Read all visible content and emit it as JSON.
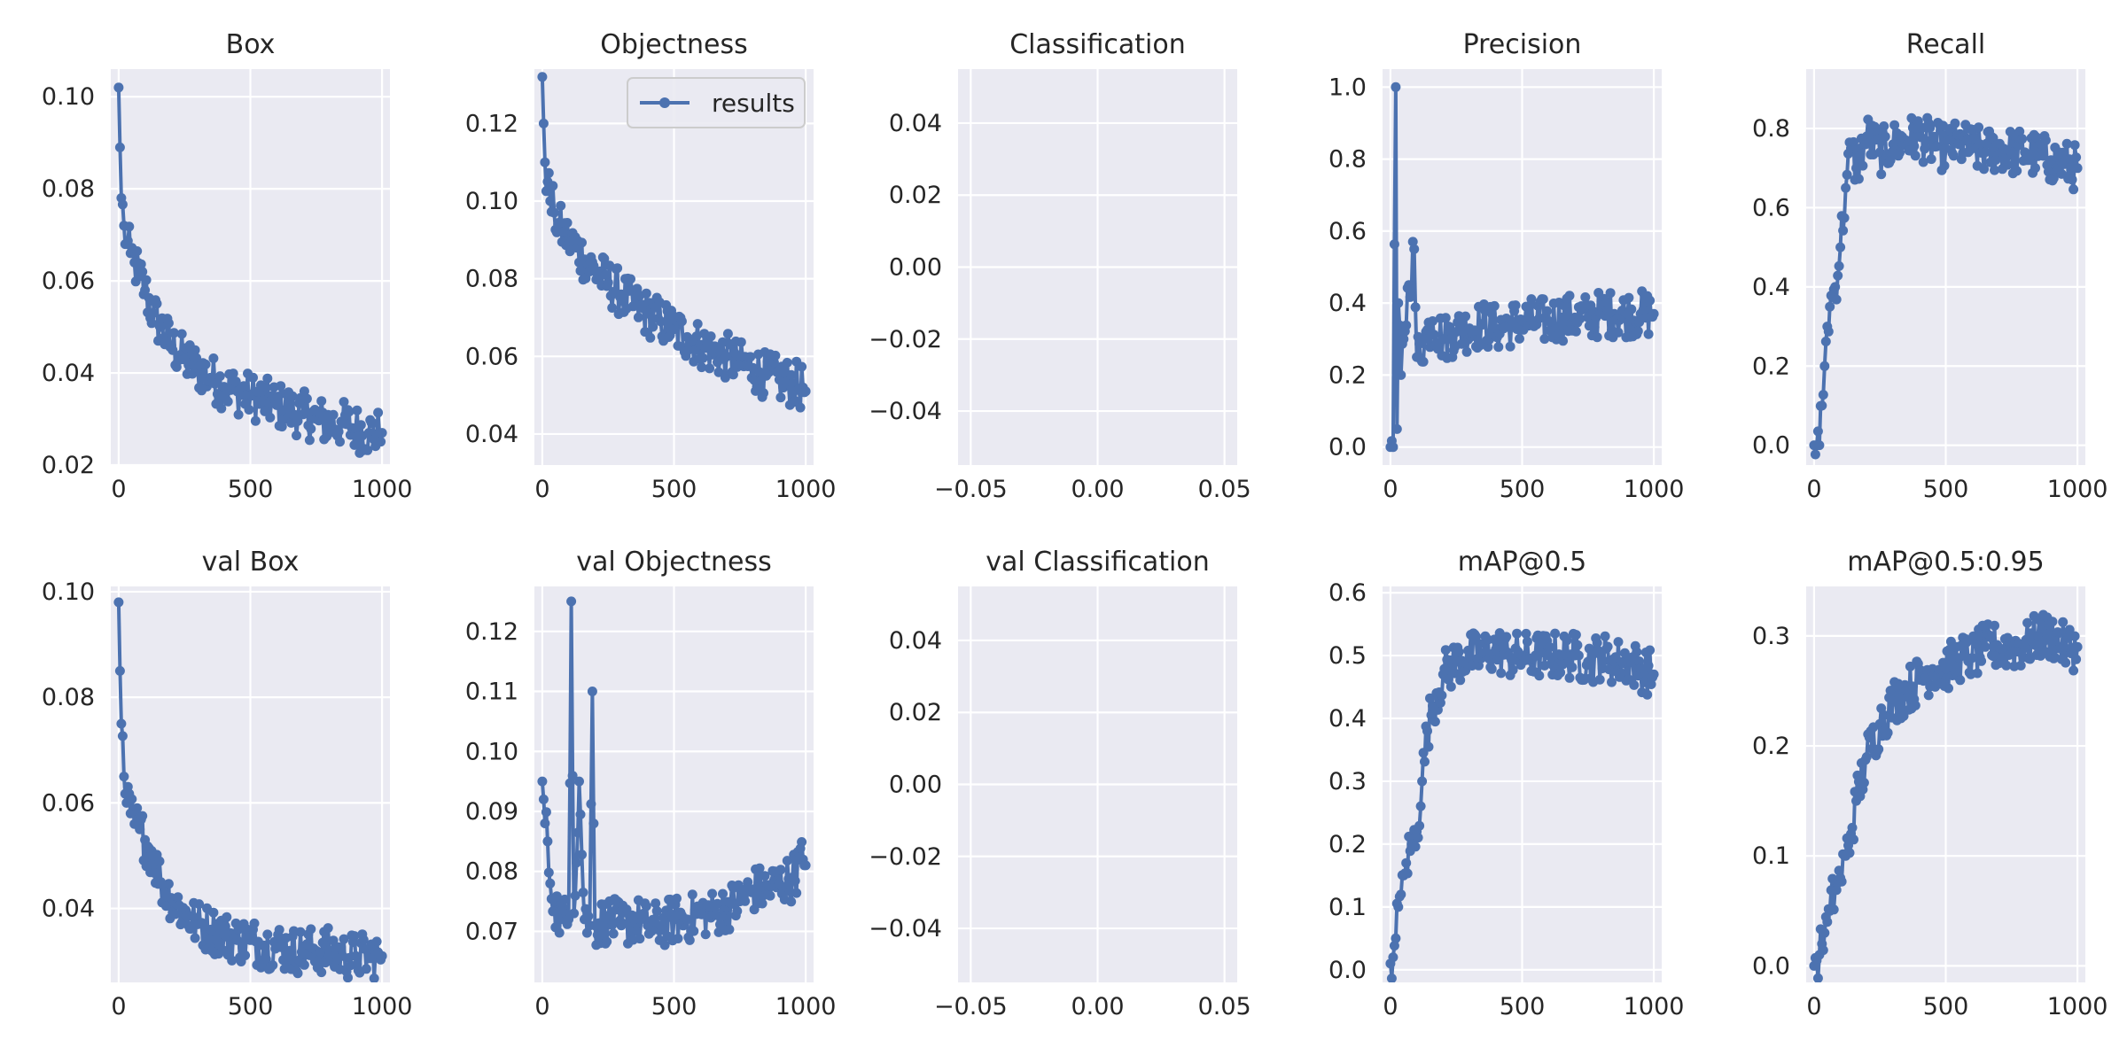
{
  "chart_data": [
    {
      "type": "line",
      "title": "Box",
      "xlim": [
        -30,
        1030
      ],
      "ylim": [
        0.02,
        0.106
      ],
      "xticks": [
        0,
        500,
        1000
      ],
      "yticks": [
        0.02,
        0.04,
        0.06,
        0.08,
        0.1
      ],
      "ytick_labels": [
        "0.02",
        "0.04",
        "0.06",
        "0.08",
        "0.10"
      ],
      "series": [
        {
          "x": [
            0,
            5,
            10,
            20,
            30,
            45,
            60,
            80,
            100,
            130,
            160,
            200,
            250,
            300,
            350,
            400,
            450,
            500,
            550,
            600,
            650,
            700,
            750,
            800,
            850,
            900,
            950,
            990,
            1000
          ],
          "y": [
            0.102,
            0.089,
            0.078,
            0.072,
            0.068,
            0.066,
            0.064,
            0.061,
            0.058,
            0.053,
            0.05,
            0.046,
            0.043,
            0.041,
            0.039,
            0.037,
            0.036,
            0.035,
            0.034,
            0.033,
            0.032,
            0.031,
            0.03,
            0.029,
            0.029,
            0.028,
            0.027,
            0.027,
            0.027
          ]
        }
      ]
    },
    {
      "type": "line",
      "title": "Objectness",
      "xlim": [
        -30,
        1030
      ],
      "ylim": [
        0.032,
        0.134
      ],
      "xticks": [
        0,
        500,
        1000
      ],
      "yticks": [
        0.04,
        0.06,
        0.08,
        0.1,
        0.12
      ],
      "ytick_labels": [
        "0.04",
        "0.06",
        "0.08",
        "0.10",
        "0.12"
      ],
      "legend": {
        "label": "results",
        "position": "upper right"
      },
      "series": [
        {
          "name": "results",
          "x": [
            0,
            5,
            10,
            20,
            30,
            45,
            60,
            80,
            100,
            130,
            160,
            200,
            250,
            300,
            350,
            400,
            450,
            500,
            550,
            600,
            650,
            700,
            750,
            800,
            850,
            900,
            950,
            990,
            1000
          ],
          "y": [
            0.132,
            0.12,
            0.11,
            0.105,
            0.1,
            0.097,
            0.094,
            0.092,
            0.09,
            0.088,
            0.085,
            0.082,
            0.079,
            0.076,
            0.073,
            0.071,
            0.069,
            0.067,
            0.065,
            0.063,
            0.061,
            0.06,
            0.058,
            0.057,
            0.055,
            0.054,
            0.053,
            0.052,
            0.051
          ]
        }
      ]
    },
    {
      "type": "line",
      "title": "Classification",
      "xlim": [
        -0.055,
        0.055
      ],
      "ylim": [
        -0.055,
        0.055
      ],
      "xticks": [
        -0.05,
        0,
        0.05
      ],
      "xtick_labels": [
        "−0.05",
        "0.00",
        "0.05"
      ],
      "yticks": [
        -0.04,
        -0.02,
        0,
        0.02,
        0.04
      ],
      "ytick_labels": [
        "−0.04",
        "−0.02",
        "0.00",
        "0.02",
        "0.04"
      ],
      "series": []
    },
    {
      "type": "line",
      "title": "Precision",
      "xlim": [
        -30,
        1030
      ],
      "ylim": [
        -0.05,
        1.05
      ],
      "xticks": [
        0,
        500,
        1000
      ],
      "yticks": [
        0,
        0.2,
        0.4,
        0.6,
        0.8,
        1.0
      ],
      "ytick_labels": [
        "0.0",
        "0.2",
        "0.4",
        "0.6",
        "0.8",
        "1.0"
      ],
      "series": [
        {
          "x": [
            0,
            10,
            20,
            25,
            30,
            40,
            50,
            70,
            90,
            100,
            130,
            160,
            200,
            250,
            300,
            350,
            400,
            450,
            500,
            550,
            600,
            650,
            700,
            750,
            800,
            850,
            900,
            950,
            1000
          ],
          "y": [
            0.0,
            0.0,
            1.0,
            0.05,
            0.4,
            0.2,
            0.3,
            0.45,
            0.55,
            0.25,
            0.3,
            0.35,
            0.3,
            0.32,
            0.33,
            0.34,
            0.33,
            0.34,
            0.35,
            0.35,
            0.35,
            0.36,
            0.36,
            0.36,
            0.37,
            0.37,
            0.37,
            0.37,
            0.37
          ]
        }
      ]
    },
    {
      "type": "line",
      "title": "Recall",
      "xlim": [
        -30,
        1030
      ],
      "ylim": [
        -0.05,
        0.95
      ],
      "xticks": [
        0,
        500,
        1000
      ],
      "yticks": [
        0,
        0.2,
        0.4,
        0.6,
        0.8
      ],
      "ytick_labels": [
        "0.0",
        "0.2",
        "0.4",
        "0.6",
        "0.8"
      ],
      "series": [
        {
          "x": [
            0,
            10,
            20,
            30,
            40,
            50,
            60,
            80,
            100,
            120,
            140,
            160,
            200,
            250,
            300,
            350,
            400,
            450,
            500,
            550,
            600,
            650,
            700,
            750,
            800,
            850,
            900,
            950,
            1000
          ],
          "y": [
            0.0,
            0.0,
            0.0,
            0.1,
            0.2,
            0.3,
            0.35,
            0.4,
            0.5,
            0.65,
            0.75,
            0.7,
            0.78,
            0.74,
            0.76,
            0.77,
            0.78,
            0.76,
            0.75,
            0.76,
            0.75,
            0.74,
            0.75,
            0.74,
            0.74,
            0.73,
            0.72,
            0.71,
            0.7
          ]
        }
      ]
    },
    {
      "type": "line",
      "title": "val Box",
      "xlim": [
        -30,
        1030
      ],
      "ylim": [
        0.026,
        0.101
      ],
      "xticks": [
        0,
        500,
        1000
      ],
      "yticks": [
        0.04,
        0.06,
        0.08,
        0.1
      ],
      "ytick_labels": [
        "0.04",
        "0.06",
        "0.08",
        "0.10"
      ],
      "series": [
        {
          "x": [
            0,
            5,
            10,
            20,
            30,
            45,
            60,
            80,
            100,
            130,
            160,
            200,
            250,
            300,
            350,
            400,
            450,
            500,
            550,
            600,
            650,
            700,
            750,
            800,
            850,
            900,
            950,
            990,
            1000
          ],
          "y": [
            0.098,
            0.085,
            0.075,
            0.065,
            0.06,
            0.058,
            0.056,
            0.055,
            0.053,
            0.05,
            0.045,
            0.042,
            0.039,
            0.037,
            0.036,
            0.035,
            0.034,
            0.034,
            0.033,
            0.033,
            0.032,
            0.032,
            0.032,
            0.032,
            0.031,
            0.031,
            0.031,
            0.031,
            0.031
          ]
        }
      ]
    },
    {
      "type": "line",
      "title": "val Objectness",
      "xlim": [
        -30,
        1030
      ],
      "ylim": [
        0.0615,
        0.1275
      ],
      "xticks": [
        0,
        500,
        1000
      ],
      "yticks": [
        0.07,
        0.08,
        0.09,
        0.1,
        0.11,
        0.12
      ],
      "ytick_labels": [
        "0.07",
        "0.08",
        "0.09",
        "0.10",
        "0.11",
        "0.12"
      ],
      "series": [
        {
          "x": [
            0,
            5,
            10,
            20,
            30,
            45,
            60,
            80,
            100,
            110,
            120,
            140,
            160,
            180,
            190,
            200,
            250,
            300,
            350,
            400,
            450,
            500,
            550,
            600,
            650,
            700,
            750,
            800,
            850,
            900,
            950,
            990,
            1000
          ],
          "y": [
            0.095,
            0.092,
            0.088,
            0.085,
            0.078,
            0.075,
            0.073,
            0.072,
            0.072,
            0.125,
            0.073,
            0.095,
            0.072,
            0.071,
            0.11,
            0.071,
            0.072,
            0.071,
            0.072,
            0.071,
            0.071,
            0.072,
            0.072,
            0.073,
            0.073,
            0.074,
            0.075,
            0.077,
            0.077,
            0.078,
            0.079,
            0.082,
            0.081
          ]
        }
      ]
    },
    {
      "type": "line",
      "title": "val Classification",
      "xlim": [
        -0.055,
        0.055
      ],
      "ylim": [
        -0.055,
        0.055
      ],
      "xticks": [
        -0.05,
        0,
        0.05
      ],
      "xtick_labels": [
        "−0.05",
        "0.00",
        "0.05"
      ],
      "yticks": [
        -0.04,
        -0.02,
        0,
        0.02,
        0.04
      ],
      "ytick_labels": [
        "−0.04",
        "−0.02",
        "0.00",
        "0.02",
        "0.04"
      ],
      "series": []
    },
    {
      "type": "line",
      "title": "mAP@0.5",
      "xlim": [
        -30,
        1030
      ],
      "ylim": [
        -0.02,
        0.61
      ],
      "xticks": [
        0,
        500,
        1000
      ],
      "yticks": [
        0,
        0.1,
        0.2,
        0.3,
        0.4,
        0.5,
        0.6
      ],
      "ytick_labels": [
        "0.0",
        "0.1",
        "0.2",
        "0.3",
        "0.4",
        "0.5",
        "0.6"
      ],
      "series": [
        {
          "x": [
            0,
            10,
            20,
            30,
            40,
            50,
            60,
            80,
            100,
            120,
            140,
            160,
            200,
            250,
            300,
            350,
            400,
            450,
            500,
            550,
            600,
            650,
            700,
            750,
            800,
            850,
            900,
            950,
            1000
          ],
          "y": [
            0.01,
            0.02,
            0.05,
            0.1,
            0.12,
            0.15,
            0.17,
            0.2,
            0.22,
            0.3,
            0.38,
            0.42,
            0.47,
            0.49,
            0.5,
            0.5,
            0.51,
            0.5,
            0.5,
            0.5,
            0.5,
            0.5,
            0.5,
            0.49,
            0.5,
            0.49,
            0.49,
            0.48,
            0.47
          ]
        }
      ]
    },
    {
      "type": "line",
      "title": "mAP@0.5:0.95",
      "xlim": [
        -30,
        1030
      ],
      "ylim": [
        -0.015,
        0.345
      ],
      "xticks": [
        0,
        500,
        1000
      ],
      "yticks": [
        0,
        0.1,
        0.2,
        0.3
      ],
      "ytick_labels": [
        "0.0",
        "0.1",
        "0.2",
        "0.3"
      ],
      "series": [
        {
          "x": [
            0,
            10,
            20,
            30,
            40,
            50,
            60,
            80,
            100,
            120,
            140,
            160,
            200,
            250,
            300,
            350,
            400,
            450,
            500,
            550,
            600,
            650,
            700,
            750,
            800,
            850,
            900,
            950,
            1000
          ],
          "y": [
            0.0,
            0.005,
            0.01,
            0.02,
            0.03,
            0.04,
            0.05,
            0.07,
            0.08,
            0.1,
            0.12,
            0.15,
            0.19,
            0.22,
            0.24,
            0.25,
            0.26,
            0.27,
            0.27,
            0.28,
            0.28,
            0.29,
            0.29,
            0.29,
            0.29,
            0.3,
            0.3,
            0.29,
            0.29
          ]
        }
      ]
    }
  ],
  "colors": {
    "line": "#4c72b0",
    "axes_bg": "#eaeaf2",
    "grid": "#ffffff",
    "text": "#262626",
    "figure_bg": "#ffffff"
  }
}
